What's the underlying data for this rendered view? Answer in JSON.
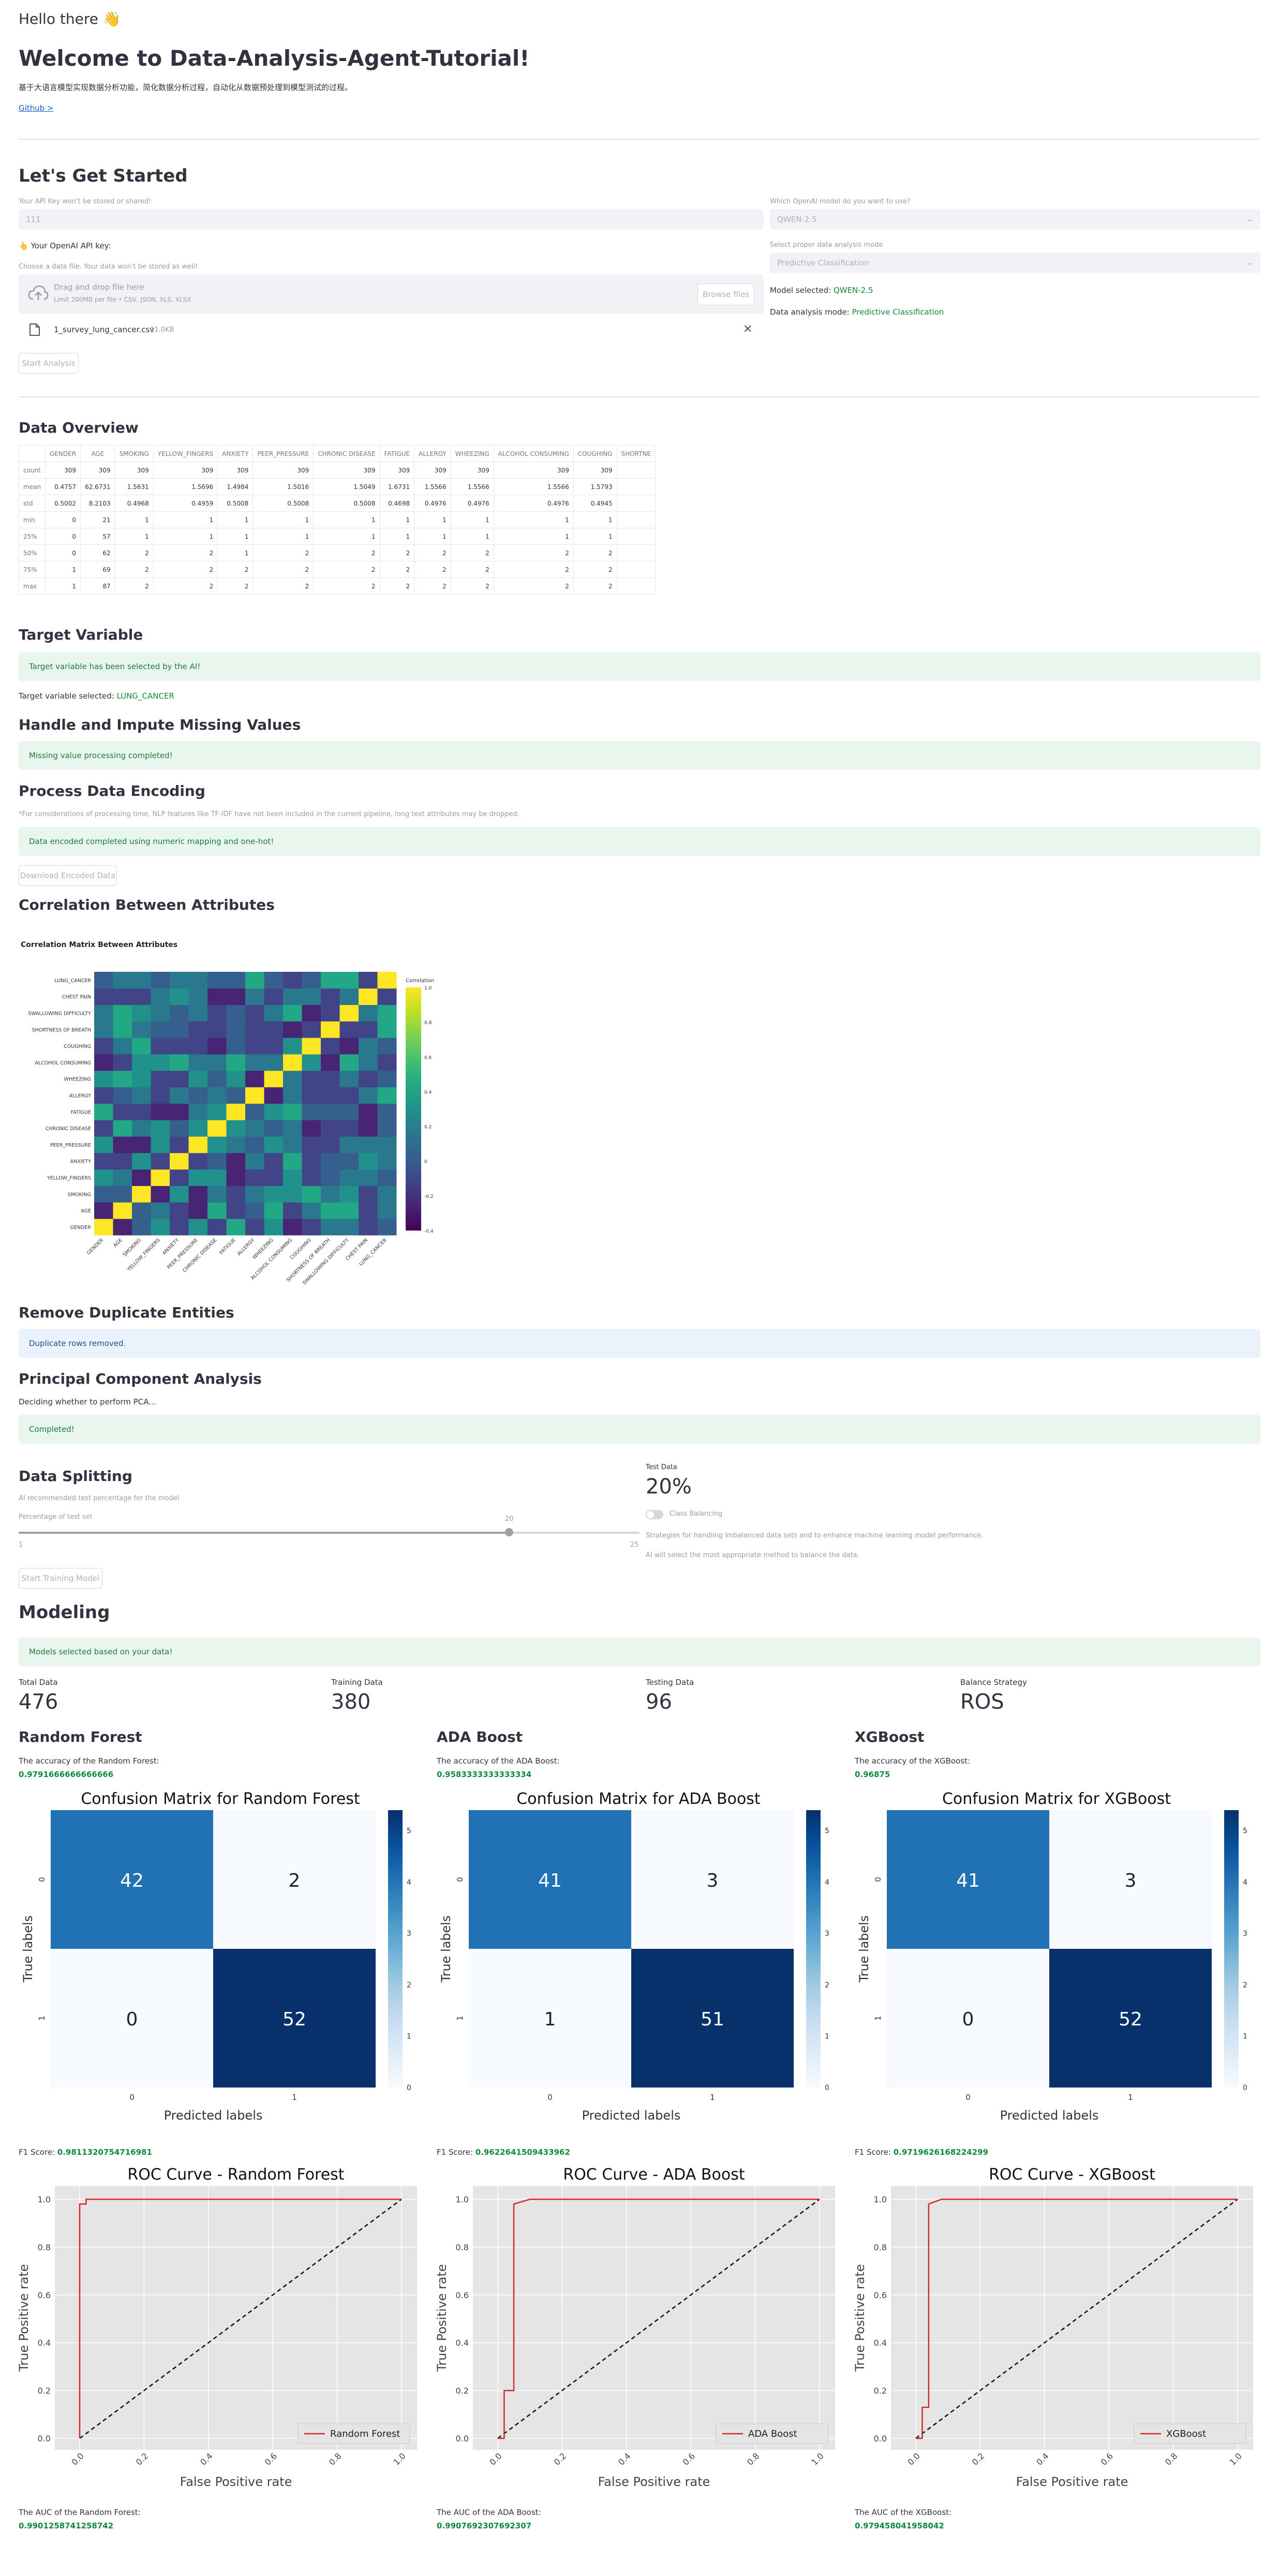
{
  "header": {
    "greeting": "Hello there 👋",
    "title": "Welcome to Data-Analysis-Agent-Tutorial!",
    "subtitle": "基于大语言模型实现数据分析功能，简化数据分析过程，自动化从数据预处理到模型测试的过程。",
    "github_link": "Github >"
  },
  "started": {
    "title": "Let's Get Started",
    "api_label": "Your API Key won't be stored or shared!",
    "api_value": "111",
    "api_note": "👆 Your OpenAI API key:",
    "upload_label": "Choose a data file. Your data won't be stored as well!",
    "drop_text": "Drag and drop file here",
    "drop_limit": "Limit 200MB per file • CSV, JSON, XLS, XLSX",
    "browse_button": "Browse files",
    "file_name": "1_survey_lung_cancer.csv",
    "file_size": "11.0KB",
    "start_button": "Start Analysis",
    "model_label": "Which OpenAI model do you want to use?",
    "model_value": "QWEN-2.5",
    "mode_label": "Select proper data analysis mode",
    "mode_value": "Predictive Classification",
    "model_selected_label": "Model selected:",
    "model_selected_value": "QWEN-2.5",
    "mode_selected_label": "Data analysis mode:",
    "mode_selected_value": "Predictive Classification"
  },
  "overview": {
    "title": "Data Overview",
    "columns": [
      "",
      "GENDER",
      "AGE",
      "SMOKING",
      "YELLOW_FINGERS",
      "ANXIETY",
      "PEER_PRESSURE",
      "CHRONIC DISEASE",
      "FATIGUE",
      "ALLERGY",
      "WHEEZING",
      "ALCOHOL CONSUMING",
      "COUGHING",
      "SHORTNE"
    ],
    "rows": [
      [
        "count",
        "309",
        "309",
        "309",
        "309",
        "309",
        "309",
        "309",
        "309",
        "309",
        "309",
        "309",
        "309",
        ""
      ],
      [
        "mean",
        "0.4757",
        "62.6731",
        "1.5631",
        "1.5696",
        "1.4984",
        "1.5016",
        "1.5049",
        "1.6731",
        "1.5566",
        "1.5566",
        "1.5566",
        "1.5793",
        ""
      ],
      [
        "std",
        "0.5002",
        "8.2103",
        "0.4968",
        "0.4959",
        "0.5008",
        "0.5008",
        "0.5008",
        "0.4698",
        "0.4976",
        "0.4976",
        "0.4976",
        "0.4945",
        ""
      ],
      [
        "min",
        "0",
        "21",
        "1",
        "1",
        "1",
        "1",
        "1",
        "1",
        "1",
        "1",
        "1",
        "1",
        ""
      ],
      [
        "25%",
        "0",
        "57",
        "1",
        "1",
        "1",
        "1",
        "1",
        "1",
        "1",
        "1",
        "1",
        "1",
        ""
      ],
      [
        "50%",
        "0",
        "62",
        "2",
        "2",
        "1",
        "2",
        "2",
        "2",
        "2",
        "2",
        "2",
        "2",
        ""
      ],
      [
        "75%",
        "1",
        "69",
        "2",
        "2",
        "2",
        "2",
        "2",
        "2",
        "2",
        "2",
        "2",
        "2",
        ""
      ],
      [
        "max",
        "1",
        "87",
        "2",
        "2",
        "2",
        "2",
        "2",
        "2",
        "2",
        "2",
        "2",
        "2",
        ""
      ]
    ]
  },
  "target": {
    "title": "Target Variable",
    "banner": "Target variable has been selected by the AI!",
    "selected_label": "Target variable selected:",
    "selected_value": "LUNG_CANCER"
  },
  "missing": {
    "title": "Handle and Impute Missing Values",
    "banner": "Missing value processing completed!"
  },
  "encoding": {
    "title": "Process Data Encoding",
    "note": "*For considerations of processing time, NLP features like TF-IDF have not been included in the current pipeline, long text attributes may be dropped.",
    "banner": "Data encoded completed using numeric mapping and one-hot!",
    "download_button": "Download Encoded Data"
  },
  "correlation": {
    "title": "Correlation Between Attributes",
    "plot_title": "Correlation Matrix Between Attributes",
    "colorbar_label": "Correlation",
    "colorbar_ticks": [
      "1.0",
      "0.8",
      "0.6",
      "0.4",
      "0.2",
      "0",
      "-0.2",
      "-0.4"
    ],
    "labels": [
      "GENDER",
      "AGE",
      "SMOKING",
      "YELLOW_FINGERS",
      "ANXIETY",
      "PEER_PRESSURE",
      "CHRONIC DISEASE",
      "FATIGUE",
      "ALLERGY",
      "WHEEZING",
      "ALCOHOL CONSUMING",
      "COUGHING",
      "SHORTNESS OF BREATH",
      "SWALLOWING DIFFICULTY",
      "CHEST PAIN",
      "LUNG_CANCER"
    ]
  },
  "duplicates": {
    "title": "Remove Duplicate Entities",
    "banner": "Duplicate rows removed."
  },
  "pca": {
    "title": "Principal Component Analysis",
    "note": "Deciding whether to perform PCA...",
    "banner": "Completed!"
  },
  "splitting": {
    "title": "Data Splitting",
    "note": "AI recommended test percentage for the model",
    "slider_label": "Percentage of test set",
    "slider_min": "1",
    "slider_max": "25",
    "slider_value": "20",
    "slider_fraction": 0.79,
    "test_label": "Test Data",
    "test_value": "20%",
    "balance_label": "Class Balancing",
    "balance_note1": "Strategies for handling imbalanced data sets and to enhance machine learning model performance.",
    "balance_note2": "AI will select the most appropriate method to balance the data.",
    "train_button": "Start Training Model"
  },
  "modeling": {
    "title": "Modeling",
    "banner": "Models selected based on your data!",
    "metrics": [
      {
        "label": "Total Data",
        "value": "476"
      },
      {
        "label": "Training Data",
        "value": "380"
      },
      {
        "label": "Testing Data",
        "value": "96"
      },
      {
        "label": "Balance Strategy",
        "value": "ROS"
      }
    ],
    "models": [
      {
        "name": "Random Forest",
        "acc_label": "The accuracy of the Random Forest:",
        "acc_value": "0.9791666666666666",
        "cm_title": "Confusion Matrix for Random Forest",
        "cm": [
          [
            "42",
            "2"
          ],
          [
            "0",
            "52"
          ]
        ],
        "f1_label": "F1 Score:",
        "f1_value": "0.9811320754716981",
        "roc_title": "ROC Curve - Random Forest",
        "legend": "Random Forest",
        "auc_label": "The AUC of the Random Forest:",
        "auc_value": "0.9901258741258742"
      },
      {
        "name": "ADA Boost",
        "acc_label": "The accuracy of the ADA Boost:",
        "acc_value": "0.9583333333333334",
        "cm_title": "Confusion Matrix for ADA Boost",
        "cm": [
          [
            "41",
            "3"
          ],
          [
            "1",
            "51"
          ]
        ],
        "f1_label": "F1 Score:",
        "f1_value": "0.9622641509433962",
        "roc_title": "ROC Curve - ADA Boost",
        "legend": "ADA Boost",
        "auc_label": "The AUC of the ADA Boost:",
        "auc_value": "0.9907692307692307"
      },
      {
        "name": "XGBoost",
        "acc_label": "The accuracy of the XGBoost:",
        "acc_value": "0.96875",
        "cm_title": "Confusion Matrix for XGBoost",
        "cm": [
          [
            "41",
            "3"
          ],
          [
            "0",
            "52"
          ]
        ],
        "f1_label": "F1 Score:",
        "f1_value": "0.9719626168224299",
        "roc_title": "ROC Curve - XGBoost",
        "legend": "XGBoost",
        "auc_label": "The AUC of the XGBoost:",
        "auc_value": "0.979458041958042"
      }
    ],
    "cm_axes": {
      "x": "Predicted labels",
      "y": "True labels",
      "ticks": [
        "0",
        "1"
      ],
      "cbar": [
        "50",
        "40",
        "30",
        "20",
        "10",
        "0"
      ]
    },
    "roc_axes": {
      "x": "False Positive rate",
      "y": "True Positive rate",
      "ticks": [
        "0.0",
        "0.2",
        "0.4",
        "0.6",
        "0.8",
        "1.0"
      ]
    }
  },
  "chart_data": [
    {
      "type": "heatmap",
      "title": "Correlation Matrix Between Attributes",
      "labels": [
        "GENDER",
        "AGE",
        "SMOKING",
        "YELLOW_FINGERS",
        "ANXIETY",
        "PEER_PRESSURE",
        "CHRONIC DISEASE",
        "FATIGUE",
        "ALLERGY",
        "WHEEZING",
        "ALCOHOL CONSUMING",
        "COUGHING",
        "SHORTNESS OF BREATH",
        "SWALLOWING DIFFICULTY",
        "CHEST PAIN",
        "LUNG_CANCER"
      ],
      "range": [
        -0.4,
        1.0
      ]
    },
    {
      "type": "heatmap",
      "title": "Confusion Matrix for Random Forest",
      "x": [
        "0",
        "1"
      ],
      "y": [
        "0",
        "1"
      ],
      "values": [
        [
          42,
          2
        ],
        [
          0,
          52
        ]
      ],
      "xlabel": "Predicted labels",
      "ylabel": "True labels"
    },
    {
      "type": "heatmap",
      "title": "Confusion Matrix for ADA Boost",
      "x": [
        "0",
        "1"
      ],
      "y": [
        "0",
        "1"
      ],
      "values": [
        [
          41,
          3
        ],
        [
          1,
          51
        ]
      ],
      "xlabel": "Predicted labels",
      "ylabel": "True labels"
    },
    {
      "type": "heatmap",
      "title": "Confusion Matrix for XGBoost",
      "x": [
        "0",
        "1"
      ],
      "y": [
        "0",
        "1"
      ],
      "values": [
        [
          41,
          3
        ],
        [
          0,
          52
        ]
      ],
      "xlabel": "Predicted labels",
      "ylabel": "True labels"
    },
    {
      "type": "line",
      "title": "ROC Curve - Random Forest",
      "series": [
        {
          "name": "Random Forest",
          "x": [
            0,
            0,
            0.02,
            0.02,
            0.05,
            0.05,
            1
          ],
          "y": [
            0,
            0.98,
            0.98,
            1,
            1,
            1,
            1
          ]
        }
      ],
      "xlabel": "False Positive rate",
      "ylabel": "True Positive rate",
      "xlim": [
        0,
        1
      ],
      "ylim": [
        0,
        1
      ]
    },
    {
      "type": "line",
      "title": "ROC Curve - ADA Boost",
      "series": [
        {
          "name": "ADA Boost",
          "x": [
            0,
            0.02,
            0.02,
            0.05,
            0.05,
            0.1,
            1
          ],
          "y": [
            0,
            0,
            0.2,
            0.2,
            0.98,
            1,
            1
          ]
        }
      ],
      "xlabel": "False Positive rate",
      "ylabel": "True Positive rate",
      "xlim": [
        0,
        1
      ],
      "ylim": [
        0,
        1
      ]
    },
    {
      "type": "line",
      "title": "ROC Curve - XGBoost",
      "series": [
        {
          "name": "XGBoost",
          "x": [
            0,
            0.02,
            0.02,
            0.04,
            0.04,
            0.08,
            1
          ],
          "y": [
            0,
            0,
            0.13,
            0.13,
            0.98,
            1,
            1
          ]
        }
      ],
      "xlabel": "False Positive rate",
      "ylabel": "True Positive rate",
      "xlim": [
        0,
        1
      ],
      "ylim": [
        0,
        1
      ]
    }
  ]
}
